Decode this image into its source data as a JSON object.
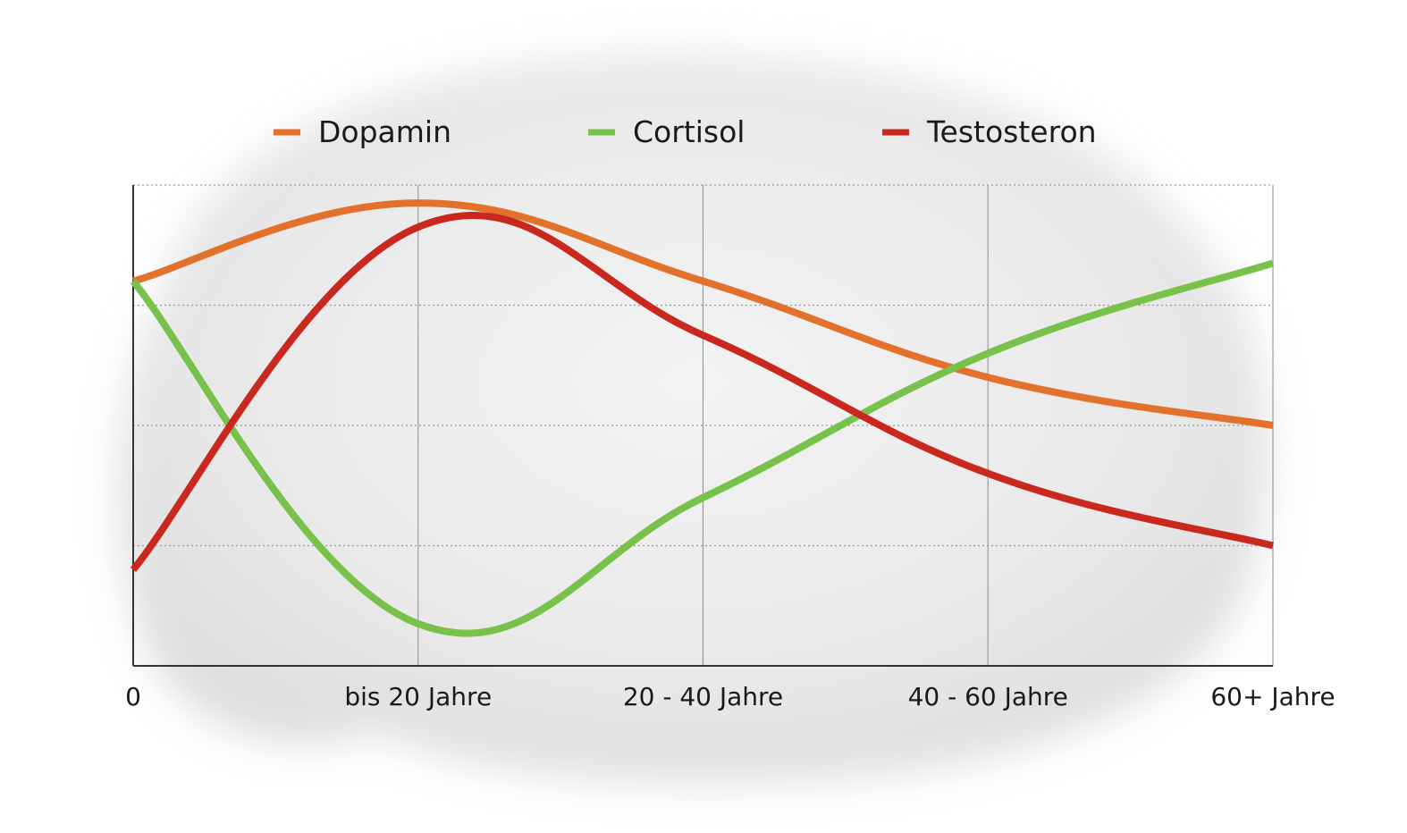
{
  "chart_data": {
    "type": "line",
    "title": "",
    "xlabel": "",
    "ylabel": "",
    "categories": [
      "0",
      "bis 20 Jahre",
      "20 - 40 Jahre",
      "40 - 60 Jahre",
      "60+ Jahre"
    ],
    "ylim": [
      0,
      4
    ],
    "grid": {
      "horizontal": "dotted",
      "vertical": "solid"
    },
    "legend": {
      "position": "top",
      "entries": [
        "Dopamin",
        "Cortisol",
        "Testosteron"
      ]
    },
    "series": [
      {
        "name": "Dopamin",
        "color": "#e2712b",
        "values": [
          3.2,
          3.85,
          3.2,
          2.4,
          2.0
        ]
      },
      {
        "name": "Cortisol",
        "color": "#78c14a",
        "values": [
          3.2,
          0.35,
          1.4,
          2.6,
          3.35
        ]
      },
      {
        "name": "Testosteron",
        "color": "#c8281e",
        "values": [
          0.8,
          3.65,
          2.75,
          1.6,
          1.0
        ]
      }
    ]
  }
}
